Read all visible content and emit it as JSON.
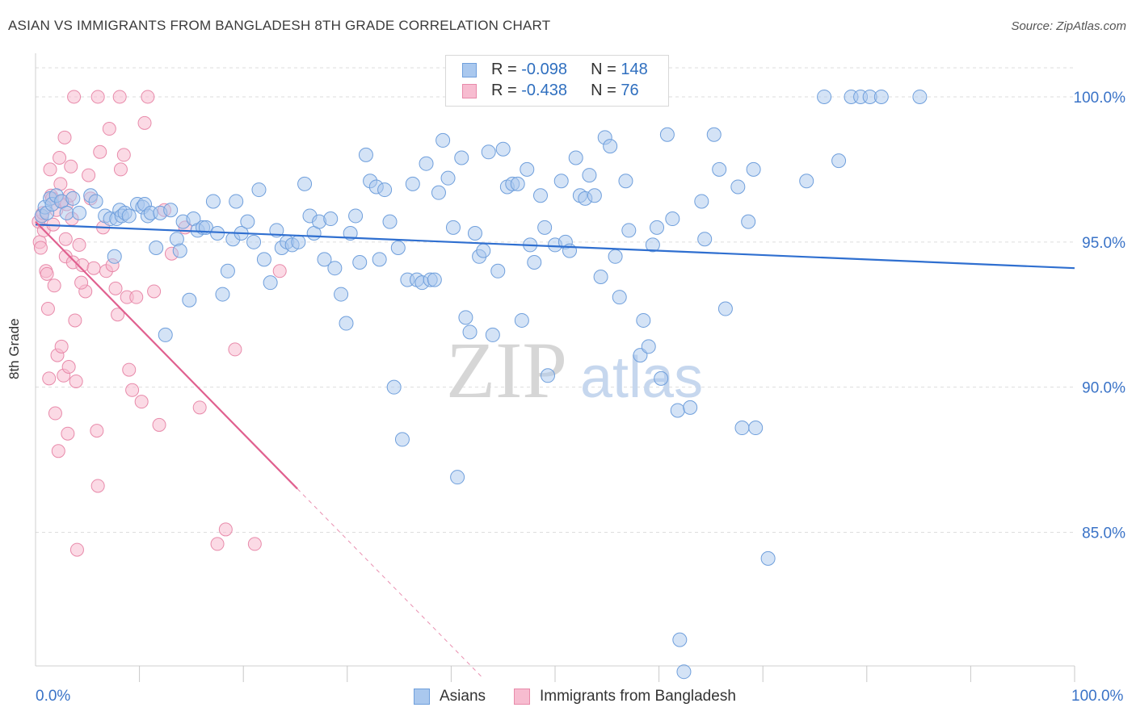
{
  "header": {
    "title": "ASIAN VS IMMIGRANTS FROM BANGLADESH 8TH GRADE CORRELATION CHART",
    "source": "Source: ZipAtlas.com"
  },
  "watermark": {
    "zip": "ZIP",
    "atlas": "atlas"
  },
  "legend_top": {
    "rows": [
      {
        "r_label": "R = ",
        "r_value": "-0.098",
        "n_label": "N = ",
        "n_value": "148"
      },
      {
        "r_label": "R = ",
        "r_value": "-0.438",
        "n_label": "N = ",
        "n_value": "76"
      }
    ]
  },
  "colors": {
    "asian_fill": "#aac8ee",
    "asian_stroke": "#6f9fdc",
    "asian_line": "#2f6fd0",
    "bangladesh_fill": "#f7bcd0",
    "bangladesh_stroke": "#e88aaa",
    "bangladesh_line": "#e0608f",
    "grid": "#dedede",
    "axis_text": "#3a73c7"
  },
  "chart_data": {
    "type": "scatter",
    "title": "ASIAN VS IMMIGRANTS FROM BANGLADESH 8TH GRADE CORRELATION CHART",
    "xlabel": "",
    "ylabel": "8th Grade",
    "xlim": [
      0,
      100
    ],
    "ylim": [
      80.4,
      101.5
    ],
    "x_tick_labels": [
      "0.0%",
      "100.0%"
    ],
    "y_ticks": [
      85,
      90,
      95,
      100
    ],
    "y_tick_labels": [
      "85.0%",
      "90.0%",
      "95.0%",
      "100.0%"
    ],
    "grid": true,
    "legend": "bottom-center",
    "series": [
      {
        "name": "Asians",
        "R": -0.098,
        "N": 148,
        "trend": {
          "x": [
            0,
            100
          ],
          "y": [
            95.6,
            94.1
          ]
        },
        "points": [
          [
            0.6,
            95.9
          ],
          [
            0.9,
            96.2
          ],
          [
            1.1,
            96.0
          ],
          [
            1.4,
            96.5
          ],
          [
            1.6,
            96.3
          ],
          [
            2.0,
            96.6
          ],
          [
            2.5,
            96.4
          ],
          [
            3.0,
            96.0
          ],
          [
            3.6,
            96.5
          ],
          [
            4.2,
            96.0
          ],
          [
            5.3,
            96.6
          ],
          [
            5.8,
            96.4
          ],
          [
            6.7,
            95.9
          ],
          [
            7.2,
            95.8
          ],
          [
            7.6,
            94.5
          ],
          [
            7.8,
            95.8
          ],
          [
            8.1,
            96.1
          ],
          [
            8.3,
            95.9
          ],
          [
            8.6,
            96.0
          ],
          [
            9.0,
            95.9
          ],
          [
            9.8,
            96.3
          ],
          [
            10.3,
            96.2
          ],
          [
            10.5,
            96.3
          ],
          [
            10.8,
            95.9
          ],
          [
            11.1,
            96.0
          ],
          [
            11.6,
            94.8
          ],
          [
            12.0,
            96.0
          ],
          [
            12.5,
            91.8
          ],
          [
            13.0,
            96.1
          ],
          [
            13.6,
            95.1
          ],
          [
            13.9,
            94.7
          ],
          [
            14.8,
            93.0
          ],
          [
            14.2,
            95.7
          ],
          [
            15.2,
            95.8
          ],
          [
            15.6,
            95.4
          ],
          [
            16.1,
            95.5
          ],
          [
            16.4,
            95.5
          ],
          [
            17.1,
            96.4
          ],
          [
            17.5,
            95.3
          ],
          [
            18.0,
            93.2
          ],
          [
            18.5,
            94.0
          ],
          [
            19.0,
            95.1
          ],
          [
            19.3,
            96.4
          ],
          [
            19.8,
            95.3
          ],
          [
            20.4,
            95.7
          ],
          [
            21.0,
            95.0
          ],
          [
            21.5,
            96.8
          ],
          [
            22.0,
            94.4
          ],
          [
            22.6,
            93.6
          ],
          [
            23.2,
            95.4
          ],
          [
            23.7,
            94.8
          ],
          [
            24.2,
            95.0
          ],
          [
            24.7,
            94.9
          ],
          [
            25.3,
            95.0
          ],
          [
            25.9,
            97.0
          ],
          [
            26.4,
            95.9
          ],
          [
            26.8,
            95.3
          ],
          [
            27.3,
            95.7
          ],
          [
            27.8,
            94.4
          ],
          [
            28.4,
            95.8
          ],
          [
            28.8,
            94.1
          ],
          [
            29.4,
            93.2
          ],
          [
            29.9,
            92.2
          ],
          [
            30.3,
            95.3
          ],
          [
            30.8,
            95.9
          ],
          [
            31.2,
            94.3
          ],
          [
            31.8,
            98.0
          ],
          [
            32.2,
            97.1
          ],
          [
            32.8,
            96.9
          ],
          [
            33.1,
            94.4
          ],
          [
            33.6,
            96.8
          ],
          [
            34.1,
            95.7
          ],
          [
            34.5,
            90.0
          ],
          [
            34.9,
            94.8
          ],
          [
            35.3,
            88.2
          ],
          [
            35.8,
            93.7
          ],
          [
            36.3,
            97.0
          ],
          [
            36.7,
            93.7
          ],
          [
            37.2,
            93.6
          ],
          [
            37.6,
            97.7
          ],
          [
            38.0,
            93.7
          ],
          [
            38.4,
            93.7
          ],
          [
            38.8,
            96.7
          ],
          [
            39.2,
            98.5
          ],
          [
            39.7,
            97.2
          ],
          [
            40.2,
            95.5
          ],
          [
            40.6,
            86.9
          ],
          [
            41.0,
            97.9
          ],
          [
            41.4,
            92.4
          ],
          [
            41.8,
            91.9
          ],
          [
            42.3,
            95.3
          ],
          [
            42.7,
            94.5
          ],
          [
            43.1,
            94.7
          ],
          [
            43.6,
            98.1
          ],
          [
            44.0,
            91.8
          ],
          [
            44.5,
            94.0
          ],
          [
            45.0,
            98.2
          ],
          [
            45.4,
            96.9
          ],
          [
            45.9,
            97.0
          ],
          [
            46.4,
            97.0
          ],
          [
            46.8,
            92.3
          ],
          [
            47.3,
            97.5
          ],
          [
            47.6,
            94.9
          ],
          [
            48.0,
            94.3
          ],
          [
            48.6,
            96.6
          ],
          [
            49.0,
            95.5
          ],
          [
            49.3,
            90.4
          ],
          [
            50.0,
            94.9
          ],
          [
            50.6,
            97.1
          ],
          [
            51.0,
            95.0
          ],
          [
            51.4,
            94.7
          ],
          [
            52.0,
            97.9
          ],
          [
            52.4,
            96.6
          ],
          [
            52.9,
            96.5
          ],
          [
            53.3,
            97.3
          ],
          [
            53.8,
            96.6
          ],
          [
            54.4,
            93.8
          ],
          [
            54.8,
            98.6
          ],
          [
            55.3,
            98.3
          ],
          [
            55.8,
            94.5
          ],
          [
            56.2,
            93.1
          ],
          [
            56.8,
            97.1
          ],
          [
            57.1,
            95.4
          ],
          [
            58.2,
            91.1
          ],
          [
            58.5,
            92.3
          ],
          [
            59.0,
            91.4
          ],
          [
            59.4,
            94.9
          ],
          [
            60.2,
            90.3
          ],
          [
            59.8,
            95.5
          ],
          [
            60.8,
            98.7
          ],
          [
            61.3,
            95.8
          ],
          [
            61.8,
            89.2
          ],
          [
            62.4,
            80.2
          ],
          [
            62.0,
            81.3
          ],
          [
            63.0,
            89.3
          ],
          [
            64.1,
            96.4
          ],
          [
            64.4,
            95.1
          ],
          [
            65.3,
            98.7
          ],
          [
            65.8,
            97.5
          ],
          [
            66.4,
            92.7
          ],
          [
            67.6,
            96.9
          ],
          [
            68.0,
            88.6
          ],
          [
            68.6,
            95.7
          ],
          [
            69.1,
            97.5
          ],
          [
            69.3,
            88.6
          ],
          [
            70.5,
            84.1
          ],
          [
            74.2,
            97.1
          ],
          [
            77.3,
            97.8
          ],
          [
            75.9,
            100.0
          ],
          [
            78.5,
            100.0
          ],
          [
            79.4,
            100.0
          ],
          [
            80.3,
            100.0
          ],
          [
            81.4,
            100.0
          ],
          [
            85.1,
            100.0
          ]
        ]
      },
      {
        "name": "Immigrants from Bangladesh",
        "R": -0.438,
        "N": 76,
        "trend": {
          "x": [
            0,
            25.2
          ],
          "y": [
            95.7,
            86.5
          ]
        },
        "trend_extension": {
          "x": [
            25.2,
            43
          ],
          "y": [
            86.5,
            80.0
          ]
        },
        "points": [
          [
            0.3,
            95.7
          ],
          [
            0.4,
            95.0
          ],
          [
            0.5,
            94.8
          ],
          [
            0.6,
            95.9
          ],
          [
            0.7,
            96.0
          ],
          [
            0.8,
            95.4
          ],
          [
            1.0,
            94.0
          ],
          [
            1.1,
            93.9
          ],
          [
            1.2,
            92.7
          ],
          [
            1.3,
            90.3
          ],
          [
            1.5,
            96.6
          ],
          [
            1.6,
            96.5
          ],
          [
            1.7,
            95.6
          ],
          [
            1.8,
            93.5
          ],
          [
            1.9,
            89.1
          ],
          [
            2.0,
            96.1
          ],
          [
            2.1,
            91.1
          ],
          [
            2.2,
            87.8
          ],
          [
            2.3,
            97.9
          ],
          [
            2.4,
            97.0
          ],
          [
            2.5,
            91.4
          ],
          [
            2.6,
            96.4
          ],
          [
            2.7,
            90.4
          ],
          [
            2.8,
            98.6
          ],
          [
            2.9,
            94.5
          ],
          [
            3.0,
            96.3
          ],
          [
            3.1,
            88.4
          ],
          [
            3.2,
            90.7
          ],
          [
            3.3,
            96.6
          ],
          [
            3.4,
            97.6
          ],
          [
            3.5,
            95.8
          ],
          [
            3.6,
            94.3
          ],
          [
            3.8,
            92.3
          ],
          [
            3.9,
            90.2
          ],
          [
            4.0,
            84.4
          ],
          [
            4.2,
            94.9
          ],
          [
            4.5,
            94.2
          ],
          [
            4.8,
            93.3
          ],
          [
            5.1,
            97.3
          ],
          [
            5.3,
            96.5
          ],
          [
            5.6,
            94.1
          ],
          [
            5.9,
            88.5
          ],
          [
            6.0,
            86.6
          ],
          [
            6.2,
            98.1
          ],
          [
            6.5,
            95.5
          ],
          [
            6.8,
            94.0
          ],
          [
            7.1,
            98.9
          ],
          [
            7.4,
            94.2
          ],
          [
            7.7,
            93.4
          ],
          [
            7.9,
            92.5
          ],
          [
            8.1,
            100.0
          ],
          [
            8.2,
            97.5
          ],
          [
            8.5,
            98.0
          ],
          [
            8.8,
            93.1
          ],
          [
            9.0,
            90.6
          ],
          [
            9.3,
            89.9
          ],
          [
            9.7,
            93.1
          ],
          [
            10.2,
            89.5
          ],
          [
            10.5,
            99.1
          ],
          [
            10.8,
            100.0
          ],
          [
            11.4,
            93.3
          ],
          [
            11.9,
            88.7
          ],
          [
            12.4,
            96.1
          ],
          [
            13.1,
            94.6
          ],
          [
            14.4,
            95.5
          ],
          [
            15.8,
            89.3
          ],
          [
            17.5,
            84.6
          ],
          [
            18.3,
            85.1
          ],
          [
            19.2,
            91.3
          ],
          [
            21.1,
            84.6
          ],
          [
            23.5,
            94.0
          ],
          [
            4.4,
            93.6
          ],
          [
            3.7,
            100.0
          ],
          [
            6.0,
            100.0
          ],
          [
            1.4,
            97.5
          ],
          [
            2.9,
            95.1
          ]
        ]
      }
    ]
  }
}
